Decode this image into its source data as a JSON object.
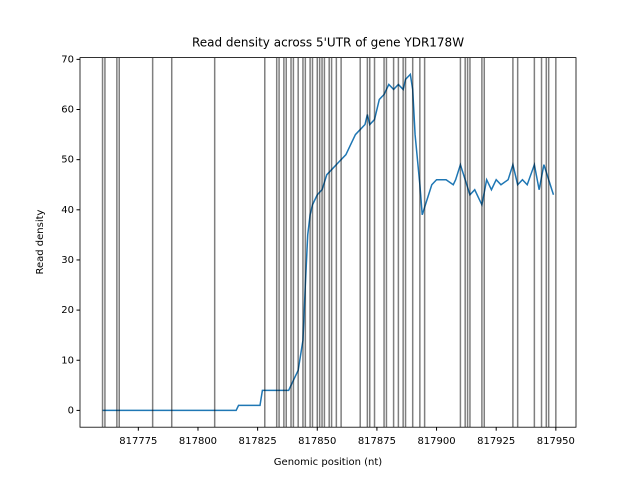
{
  "chart_data": {
    "type": "line",
    "title": "Read density across 5'UTR of gene YDR178W",
    "x_label": "Genomic position (nt)",
    "y_label": "Read density",
    "x": [
      817760,
      817816,
      817817,
      817826,
      817827,
      817838,
      817840,
      817842,
      817844,
      817845,
      817846,
      817847,
      817848,
      817850,
      817852,
      817854,
      817856,
      817858,
      817860,
      817862,
      817864,
      817866,
      817868,
      817870,
      817871,
      817872,
      817874,
      817876,
      817878,
      817880,
      817882,
      817884,
      817886,
      817887,
      817889,
      817890,
      817891,
      817893,
      817894,
      817896,
      817898,
      817900,
      817904,
      817907,
      817908,
      817910,
      817912,
      817914,
      817916,
      817918,
      817919,
      817921,
      817923,
      817925,
      817927,
      817930,
      817932,
      817934,
      817936,
      817938,
      817941,
      817943,
      817945,
      817947,
      817949
    ],
    "values": [
      0,
      0,
      1,
      1,
      4,
      4,
      6,
      8,
      14,
      25,
      35,
      39,
      41,
      43,
      44,
      47,
      48,
      49,
      50,
      51,
      53,
      55,
      56,
      57,
      59,
      57,
      58,
      62,
      63,
      65,
      64,
      65,
      64,
      66,
      67,
      64,
      55,
      45,
      39,
      42,
      45,
      46,
      46,
      45,
      46,
      49,
      46,
      43,
      44,
      42,
      41,
      46,
      44,
      46,
      45,
      46,
      49,
      45,
      46,
      45,
      49,
      44,
      49,
      46,
      43
    ],
    "color": "#1f77b4",
    "vlines": [
      817760,
      817761,
      817766,
      817767,
      817781,
      817789,
      817807,
      817828,
      817833,
      817834,
      817836,
      817837,
      817839,
      817840,
      817842,
      817844,
      817845,
      817847,
      817848,
      817850,
      817851,
      817852,
      817853,
      817855,
      817856,
      817858,
      817860,
      817868,
      817871,
      817872,
      817874,
      817878,
      817879,
      817882,
      817884,
      817886,
      817887,
      817890,
      817893,
      817895,
      817910,
      817912,
      817913,
      817914,
      817919,
      817920,
      817932,
      817934,
      817941,
      817944,
      817946,
      817947,
      817950
    ],
    "vline_color": "#000000",
    "xlim": [
      817750.55,
      817958.45
    ],
    "ylim": [
      -3.35,
      70.35
    ],
    "xticks": [
      817775,
      817800,
      817825,
      817850,
      817875,
      817900,
      817925,
      817950
    ],
    "yticks": [
      0,
      10,
      20,
      30,
      40,
      50,
      60,
      70
    ]
  }
}
